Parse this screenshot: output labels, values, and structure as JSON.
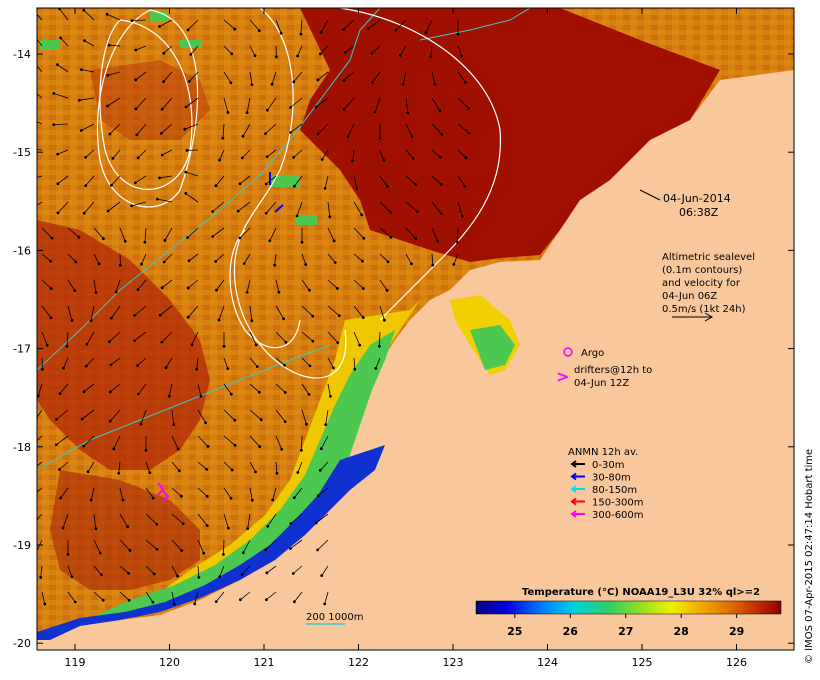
{
  "map": {
    "date_label": "04-Jun-2014",
    "time_label": "06:38Z",
    "altimetry_lines": [
      "Altimetric sealevel",
      "(0.1m contours)",
      "and velocity for",
      "04-Jun 06Z",
      "0.5m/s (1kt 24h)"
    ],
    "argo_label": "Argo",
    "drifter_lines": [
      "drifters@12h to",
      "04-Jun 12Z"
    ],
    "drifter_symbol": ">",
    "anmn_title": "ANMN 12h av.",
    "anmn_legend": [
      {
        "label": "0-30m",
        "color": "#000000"
      },
      {
        "label": "30-80m",
        "color": "#0000ff"
      },
      {
        "label": "80-150m",
        "color": "#00e0e0"
      },
      {
        "label": "150-300m",
        "color": "#ff0000"
      },
      {
        "label": "300-600m",
        "color": "#ff00ff"
      }
    ],
    "isobath_label": "200  1000m",
    "credit": "© IMOS 07-Apr-2015 02:47:14 Hobart time",
    "x_ticks": [
      "119",
      "120",
      "121",
      "122",
      "123",
      "124",
      "125",
      "126"
    ],
    "y_ticks": [
      "-14",
      "-15",
      "-16",
      "-17",
      "-18",
      "-19",
      "-20"
    ],
    "colorbar": {
      "title": "Temperature (°C) NOAA19_L3U 32% ql>=2",
      "ticks": [
        "25",
        "26",
        "27",
        "28",
        "29"
      ],
      "range": [
        24.3,
        29.8
      ]
    },
    "colors": {
      "land": "#f9c79c",
      "warm": "#a01000",
      "orange": "#d4780a",
      "green": "#46c84a",
      "blue": "#1030d0",
      "isobath_200": "#40c8c8",
      "isobath_1000": "#ffffff"
    }
  }
}
